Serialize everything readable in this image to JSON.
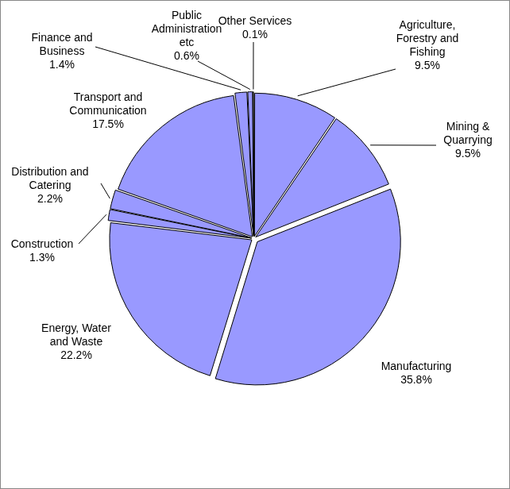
{
  "chart_data": {
    "type": "pie",
    "categories": [
      "Agriculture,\nForestry and\nFishing",
      "Mining &\nQuarrying",
      "Manufacturing",
      "Energy, Water\nand Waste",
      "Construction",
      "Distribution and\nCatering",
      "Transport and\nCommunication",
      "Finance and\nBusiness",
      "Public\nAdministration\netc",
      "Other Services"
    ],
    "values": [
      9.5,
      9.5,
      35.8,
      22.2,
      1.3,
      2.2,
      17.5,
      1.4,
      0.6,
      0.1
    ],
    "value_labels": [
      "9.5%",
      "9.5%",
      "35.8%",
      "22.2%",
      "1.3%",
      "2.2%",
      "17.5%",
      "1.4%",
      "0.6%",
      "0.1%"
    ],
    "color": "#9999ff",
    "data_labels": true
  }
}
